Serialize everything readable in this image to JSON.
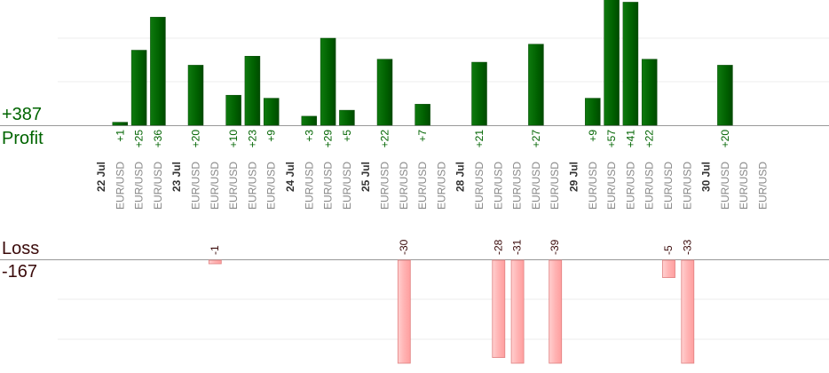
{
  "profit_section": {
    "label": "Profit",
    "total": "+387"
  },
  "loss_section": {
    "label": "Loss",
    "total": "-167"
  },
  "colors": {
    "profit_bar": "#0a6a0a",
    "profit_text": "#006400",
    "loss_bar": "#ffb3b3",
    "loss_text": "#3a0a0a",
    "date_text": "#333333",
    "pair_text": "#888888"
  },
  "chart_data": {
    "type": "bar",
    "layout": "diverging profit/loss by trade",
    "categories": [
      "22 Jul",
      "EUR/USD",
      "EUR/USD",
      "EUR/USD",
      "23 Jul",
      "EUR/USD",
      "EUR/USD",
      "EUR/USD",
      "EUR/USD",
      "EUR/USD",
      "24 Jul",
      "EUR/USD",
      "EUR/USD",
      "EUR/USD",
      "25 Jul",
      "EUR/USD",
      "EUR/USD",
      "EUR/USD",
      "EUR/USD",
      "28 Jul",
      "EUR/USD",
      "EUR/USD",
      "EUR/USD",
      "EUR/USD",
      "EUR/USD",
      "29 Jul",
      "EUR/USD",
      "EUR/USD",
      "EUR/USD",
      "EUR/USD",
      "EUR/USD",
      "EUR/USD",
      "30 Jul",
      "EUR/USD",
      "EUR/USD",
      "EUR/USD"
    ],
    "is_date": [
      true,
      false,
      false,
      false,
      true,
      false,
      false,
      false,
      false,
      false,
      true,
      false,
      false,
      false,
      true,
      false,
      false,
      false,
      false,
      true,
      false,
      false,
      false,
      false,
      false,
      true,
      false,
      false,
      false,
      false,
      false,
      false,
      true,
      false,
      false,
      false
    ],
    "series": [
      {
        "name": "Profit",
        "values": [
          null,
          1,
          25,
          36,
          null,
          20,
          null,
          10,
          23,
          9,
          null,
          3,
          29,
          5,
          null,
          22,
          null,
          7,
          null,
          null,
          21,
          null,
          null,
          27,
          null,
          null,
          9,
          57,
          41,
          22,
          null,
          null,
          null,
          20,
          null,
          null
        ],
        "labels": [
          null,
          "+1",
          "+25",
          "+36",
          null,
          "+20",
          null,
          "+10",
          "+23",
          "+9",
          null,
          "+3",
          "+29",
          "+5",
          null,
          "+22",
          null,
          "+7",
          null,
          null,
          "+21",
          null,
          null,
          "+27",
          null,
          null,
          "+9",
          "+57",
          "+41",
          "+22",
          null,
          null,
          null,
          "+20",
          null,
          null
        ]
      },
      {
        "name": "Loss",
        "values": [
          null,
          null,
          null,
          null,
          null,
          null,
          -1,
          null,
          null,
          null,
          null,
          null,
          null,
          null,
          null,
          null,
          -30,
          null,
          null,
          null,
          null,
          -28,
          -31,
          null,
          -39,
          null,
          null,
          null,
          null,
          null,
          -5,
          -33,
          null,
          null,
          null,
          null
        ],
        "labels": [
          null,
          null,
          null,
          null,
          null,
          null,
          "-1",
          null,
          null,
          null,
          null,
          null,
          null,
          null,
          null,
          null,
          "-30",
          null,
          null,
          null,
          null,
          "-28",
          "-31",
          null,
          "-39",
          null,
          null,
          null,
          null,
          null,
          "-5",
          "-33",
          null,
          null,
          null,
          null
        ]
      }
    ],
    "profit_axis_max": 29,
    "loss_axis_max": 23,
    "gridlines": true,
    "xlabel": "",
    "ylabel": ""
  }
}
